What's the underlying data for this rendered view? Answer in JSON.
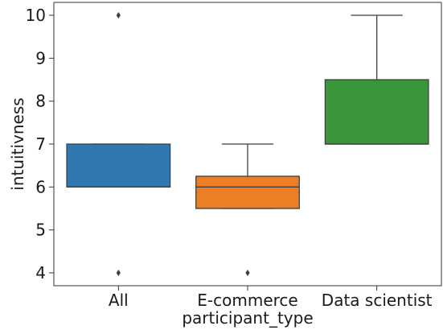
{
  "chart_data": {
    "type": "box",
    "xlabel": "participant_type",
    "ylabel": "intuitivness",
    "ylim": [
      3.7,
      10.3
    ],
    "yticks": [
      4,
      5,
      6,
      7,
      8,
      9,
      10
    ],
    "grid": false,
    "categories": [
      "All",
      "E-commerce",
      "Data scientist"
    ],
    "boxes": [
      {
        "category": "All",
        "color": "#2f78b2",
        "q1": 6,
        "median": 6,
        "q3": 7,
        "whisker_low": 6,
        "whisker_high": 7,
        "outliers": [
          10,
          4
        ]
      },
      {
        "category": "E-commerce",
        "color": "#ec7f26",
        "q1": 5.5,
        "median": 6,
        "q3": 6.25,
        "whisker_low": 5.5,
        "whisker_high": 7,
        "outliers": [
          4
        ]
      },
      {
        "category": "Data scientist",
        "color": "#3a963a",
        "q1": 7,
        "median": 7,
        "q3": 8.5,
        "whisker_low": 7,
        "whisker_high": 10,
        "outliers": []
      }
    ]
  }
}
